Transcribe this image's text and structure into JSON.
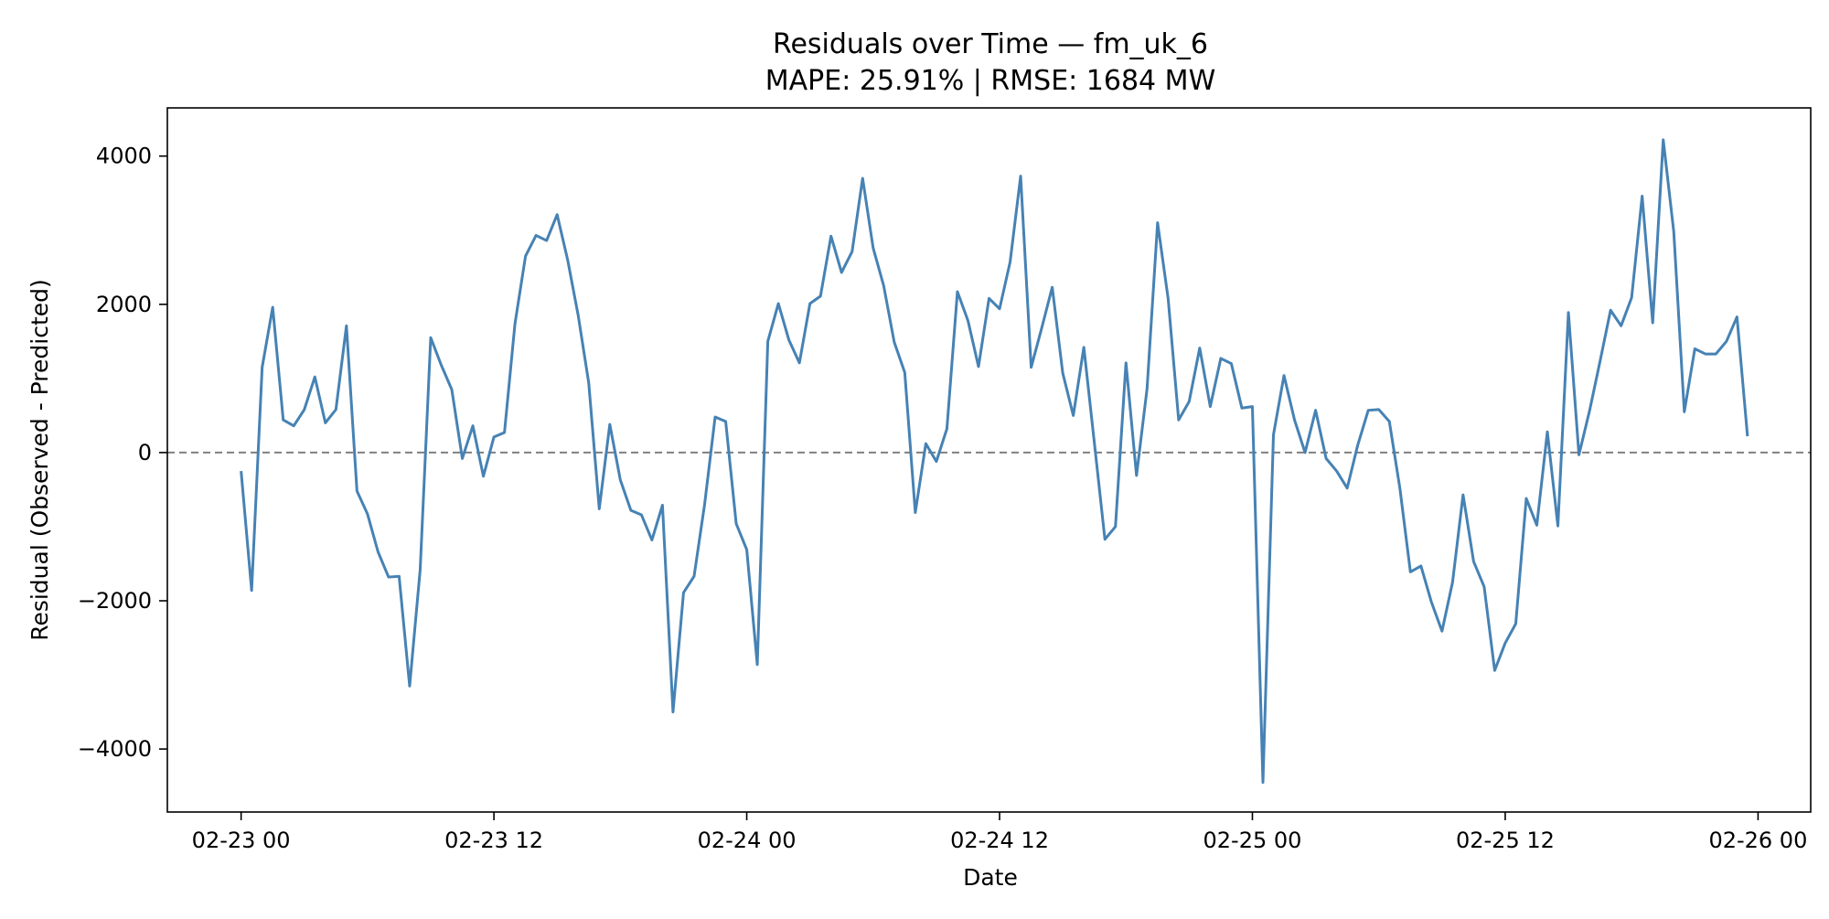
{
  "chart_data": {
    "type": "line",
    "title": "Residuals over Time — fm_uk_6",
    "subtitle": "MAPE: 25.91%  |  RMSE: 1684 MW",
    "xlabel": "Date",
    "ylabel": "Residual (Observed - Predicted)",
    "x_start": "2023-02-23 00:00",
    "x_step_hours": 0.5,
    "xlim": [
      "2023-02-22 20:30",
      "2023-02-26 02:30"
    ],
    "ylim": [
      -4850,
      4650
    ],
    "xticks": [
      "02-23 00",
      "02-23 12",
      "02-24 00",
      "02-24 12",
      "02-25 00",
      "02-25 12",
      "02-26 00"
    ],
    "yticks": [
      4000,
      2000,
      0,
      -2000,
      -4000
    ],
    "ytick_labels": [
      "4000",
      "2000",
      "0",
      "−2000",
      "−4000"
    ],
    "zero_line": {
      "y": 0,
      "style": "dashed",
      "color": "#808080"
    },
    "grid": false,
    "legend": "none",
    "series": [
      {
        "color": "#4682b4",
        "values": [
          -250,
          -1860,
          1150,
          1960,
          440,
          360,
          580,
          1020,
          400,
          580,
          1710,
          -520,
          -830,
          -1340,
          -1680,
          -1670,
          -3150,
          -1580,
          1550,
          1180,
          850,
          -80,
          360,
          -320,
          210,
          270,
          1740,
          2650,
          2930,
          2860,
          3210,
          2600,
          1850,
          940,
          -760,
          380,
          -370,
          -780,
          -840,
          -1180,
          -710,
          -3500,
          -1890,
          -1670,
          -700,
          480,
          420,
          -960,
          -1310,
          -2860,
          1500,
          2010,
          1520,
          1210,
          2010,
          2110,
          2920,
          2430,
          2710,
          3700,
          2760,
          2250,
          1490,
          1080,
          -810,
          120,
          -120,
          320,
          2170,
          1780,
          1160,
          2080,
          1940,
          2570,
          3730,
          1150,
          1680,
          2230,
          1070,
          500,
          1420,
          130,
          -1170,
          -1000,
          1210,
          -310,
          860,
          3100,
          2080,
          440,
          690,
          1410,
          620,
          1270,
          1200,
          600,
          620,
          -4450,
          240,
          1040,
          440,
          0,
          570,
          -80,
          -250,
          -480,
          100,
          570,
          580,
          420,
          -480,
          -1610,
          -1530,
          -2020,
          -2410,
          -1750,
          -570,
          -1470,
          -1810,
          -2940,
          -2570,
          -2310,
          -620,
          -980,
          280,
          -990,
          1890,
          -30,
          560,
          1230,
          1920,
          1710,
          2090,
          3460,
          1750,
          4220,
          2980,
          550,
          1400,
          1330,
          1330,
          1500,
          1830,
          220
        ]
      }
    ]
  }
}
